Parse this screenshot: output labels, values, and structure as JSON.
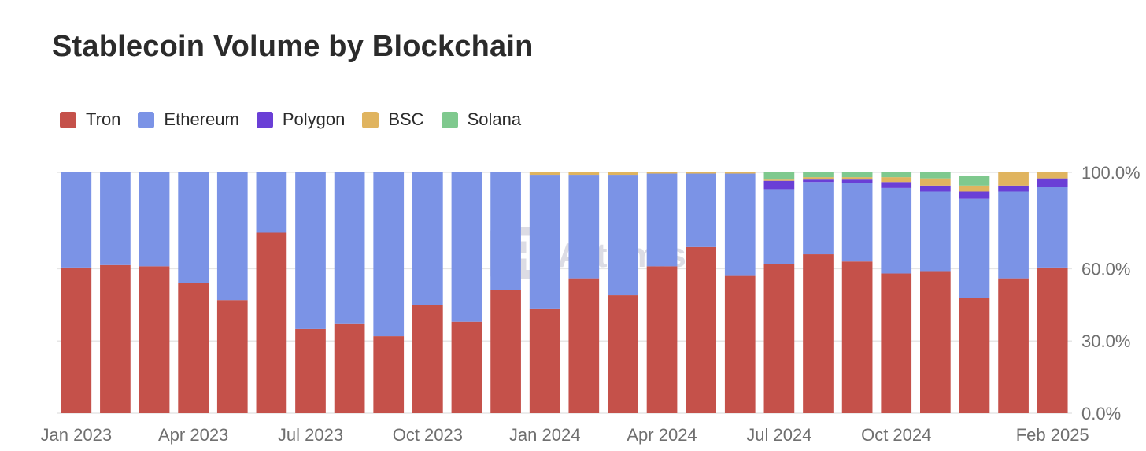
{
  "title": "Stablecoin Volume by Blockchain",
  "watermark": "Artemis",
  "legend": [
    {
      "name": "Tron",
      "color": "#c5514a"
    },
    {
      "name": "Ethereum",
      "color": "#7b93e6"
    },
    {
      "name": "Polygon",
      "color": "#6a3fd6"
    },
    {
      "name": "BSC",
      "color": "#e0b45f"
    },
    {
      "name": "Solana",
      "color": "#7fc98e"
    }
  ],
  "chart_data": {
    "type": "bar",
    "stacked": true,
    "title": "Stablecoin Volume by Blockchain",
    "xlabel": "",
    "ylabel": "",
    "ylim": [
      0,
      100
    ],
    "y_ticks": [
      "0.0%",
      "30.0%",
      "60.0%",
      "100.0%"
    ],
    "y_tick_values": [
      0,
      30,
      60,
      100
    ],
    "y_axis_position": "right",
    "x_tick_labels": [
      {
        "label": "Jan 2023",
        "index": 0
      },
      {
        "label": "Apr 2023",
        "index": 3
      },
      {
        "label": "Jul 2023",
        "index": 6
      },
      {
        "label": "Oct 2023",
        "index": 9
      },
      {
        "label": "Jan 2024",
        "index": 12
      },
      {
        "label": "Apr 2024",
        "index": 15
      },
      {
        "label": "Jul 2024",
        "index": 18
      },
      {
        "label": "Oct 2024",
        "index": 21
      },
      {
        "label": "Feb 2025",
        "index": 25
      }
    ],
    "categories": [
      "Jan 2023",
      "Feb 2023",
      "Mar 2023",
      "Apr 2023",
      "May 2023",
      "Jun 2023",
      "Jul 2023",
      "Aug 2023",
      "Sep 2023",
      "Oct 2023",
      "Nov 2023",
      "Dec 2023",
      "Jan 2024",
      "Feb 2024",
      "Mar 2024",
      "Apr 2024",
      "May 2024",
      "Jun 2024",
      "Jul 2024",
      "Aug 2024",
      "Sep 2024",
      "Oct 2024",
      "Nov 2024",
      "Dec 2024",
      "Jan 2025",
      "Feb 2025"
    ],
    "series": [
      {
        "name": "Tron",
        "color": "#c5514a",
        "values": [
          60.5,
          61.5,
          61,
          54,
          47,
          75,
          35,
          37,
          32,
          45,
          38,
          51,
          43.5,
          56,
          49,
          61,
          69,
          57,
          62,
          66,
          63,
          58,
          59,
          48,
          56,
          60.5
        ]
      },
      {
        "name": "Ethereum",
        "color": "#7b93e6",
        "values": [
          39.5,
          38.5,
          39,
          46,
          53,
          25,
          65,
          63,
          68,
          55,
          62,
          49,
          55.5,
          43,
          50,
          38.5,
          30.5,
          42.5,
          31,
          30,
          32.5,
          35.5,
          33,
          41,
          36,
          33.5
        ]
      },
      {
        "name": "Polygon",
        "color": "#6a3fd6",
        "values": [
          0,
          0,
          0,
          0,
          0,
          0,
          0,
          0,
          0,
          0,
          0,
          0,
          0,
          0,
          0,
          0,
          0,
          0,
          3.5,
          1,
          1.5,
          2.5,
          2.5,
          3,
          2.5,
          3.5
        ]
      },
      {
        "name": "BSC",
        "color": "#e0b45f",
        "values": [
          0,
          0,
          0,
          0,
          0,
          0,
          0,
          0,
          0,
          0,
          0,
          0,
          1,
          1,
          1,
          0.5,
          0.5,
          0.5,
          0.5,
          1,
          1,
          2,
          3,
          2.5,
          5.5,
          2.5
        ]
      },
      {
        "name": "Solana",
        "color": "#7fc98e",
        "values": [
          0,
          0,
          0,
          0,
          0,
          0,
          0,
          0,
          0,
          0,
          0,
          0,
          0,
          0,
          0,
          0,
          0,
          0,
          3,
          2,
          2,
          2,
          2.5,
          4,
          0,
          0
        ]
      }
    ]
  }
}
